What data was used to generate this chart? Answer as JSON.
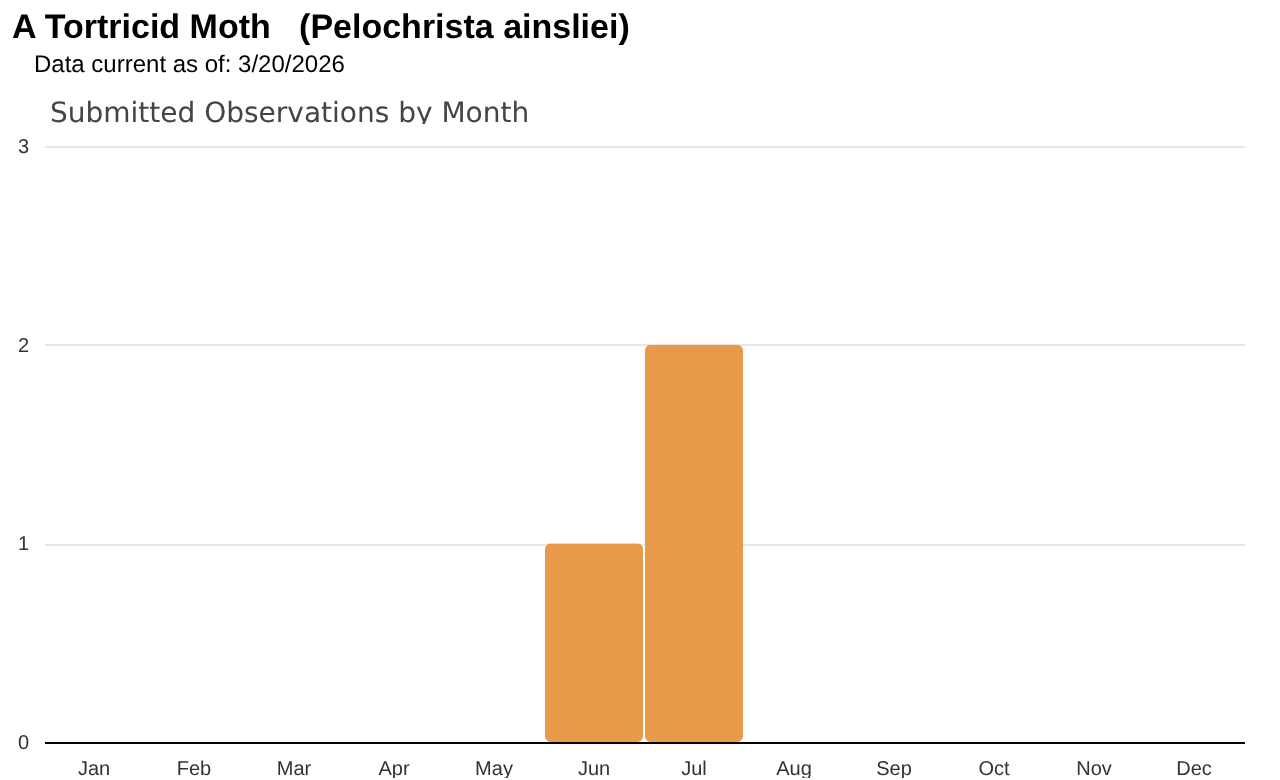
{
  "chart_data": {
    "type": "bar",
    "title": "A Tortricid Moth   (Pelochrista ainsliei)",
    "subtitle": "Data current as of: 3/20/2026",
    "annotations": [
      "Submitted Observations by Month"
    ],
    "categories": [
      "Jan",
      "Feb",
      "Mar",
      "Apr",
      "May",
      "Jun",
      "Jul",
      "Aug",
      "Sep",
      "Oct",
      "Nov",
      "Dec"
    ],
    "values": [
      0,
      0,
      0,
      0,
      0,
      1,
      2,
      0,
      0,
      0,
      0,
      0
    ],
    "color": "#e89a4a",
    "ylim": [
      0,
      3
    ],
    "yticks": [
      0,
      1,
      2,
      3
    ],
    "grid": "y"
  }
}
